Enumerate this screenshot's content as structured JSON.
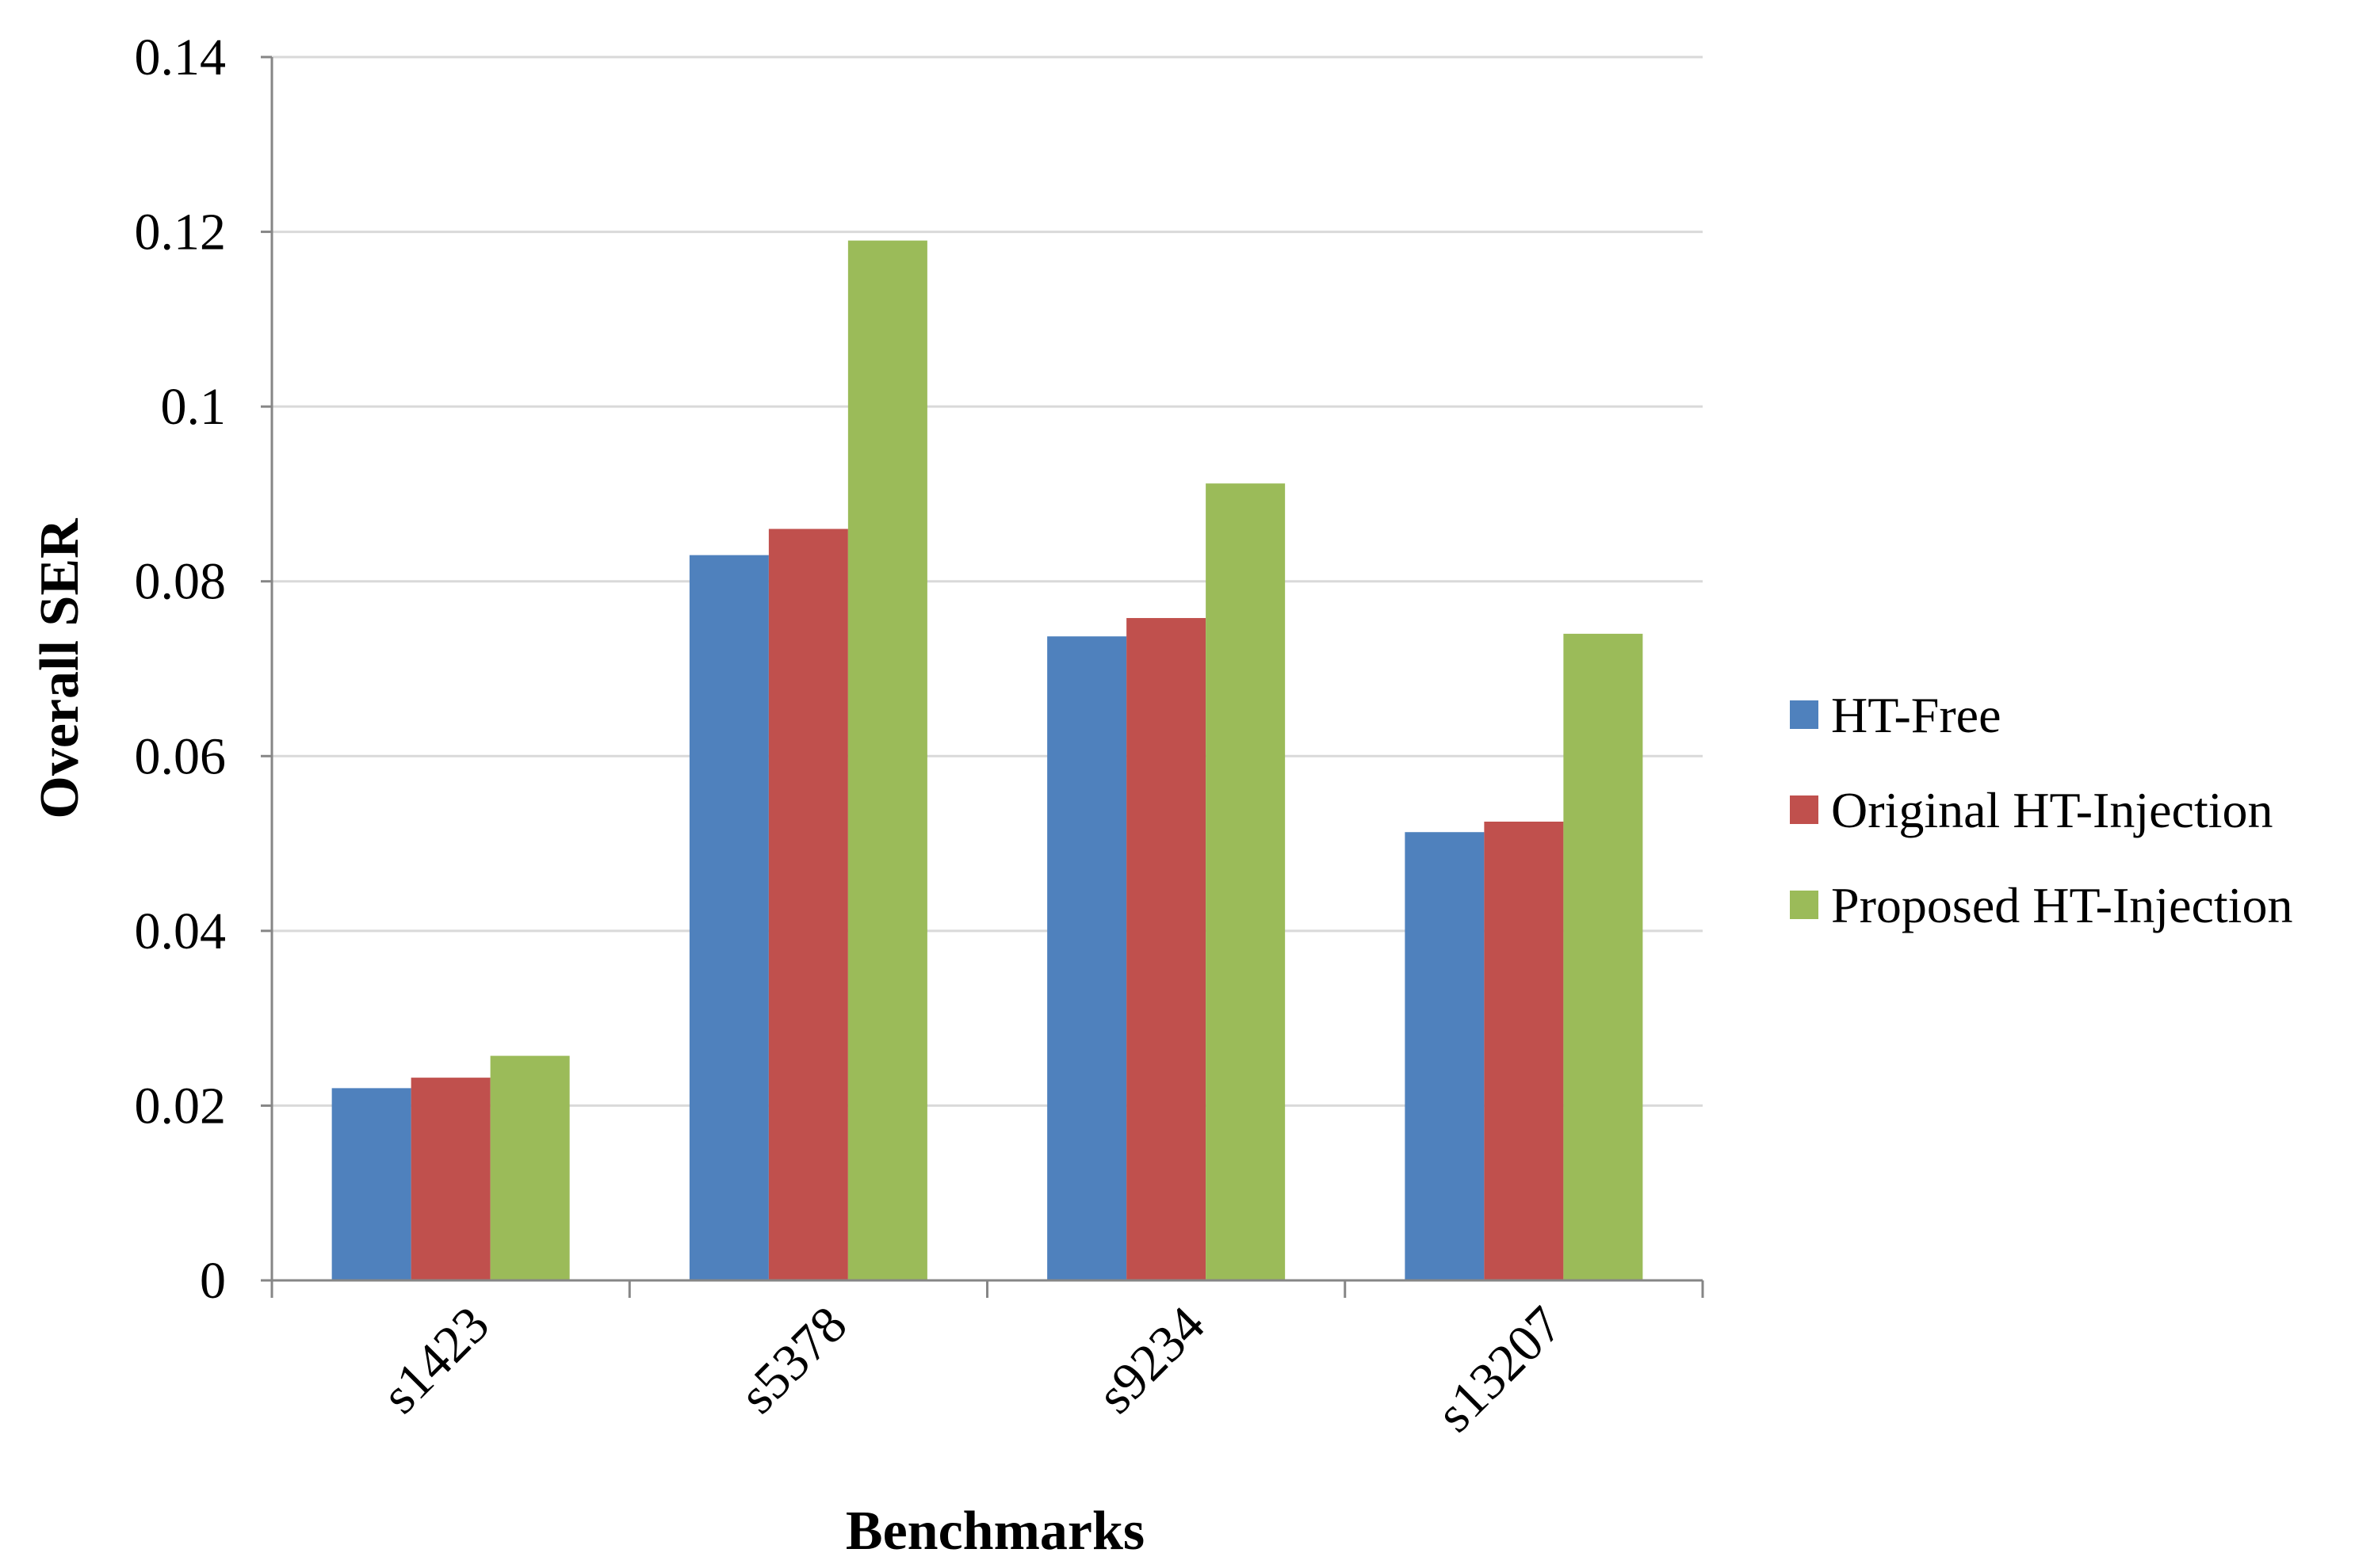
{
  "chart_data": {
    "type": "bar",
    "title": "",
    "xlabel": "Benchmarks",
    "ylabel": "Overall SER",
    "categories": [
      "s1423",
      "s5378",
      "s9234",
      "s13207"
    ],
    "series": [
      {
        "name": "HT-Free",
        "color": "#4F81BD",
        "values": [
          0.022,
          0.083,
          0.0737,
          0.0513
        ]
      },
      {
        "name": "Original HT-Injection",
        "color": "#C0504D",
        "values": [
          0.0232,
          0.086,
          0.0758,
          0.0525
        ]
      },
      {
        "name": "Proposed HT-Injection",
        "color": "#9BBB59",
        "values": [
          0.0257,
          0.119,
          0.0912,
          0.074
        ]
      }
    ],
    "ylim": [
      0,
      0.14
    ],
    "yticks": [
      "0",
      "0.02",
      "0.04",
      "0.06",
      "0.08",
      "0.1",
      "0.12",
      "0.14"
    ],
    "grid": true,
    "legend_position": "right",
    "gridline_color": "#D9D9D9",
    "axis_color": "#868686"
  }
}
